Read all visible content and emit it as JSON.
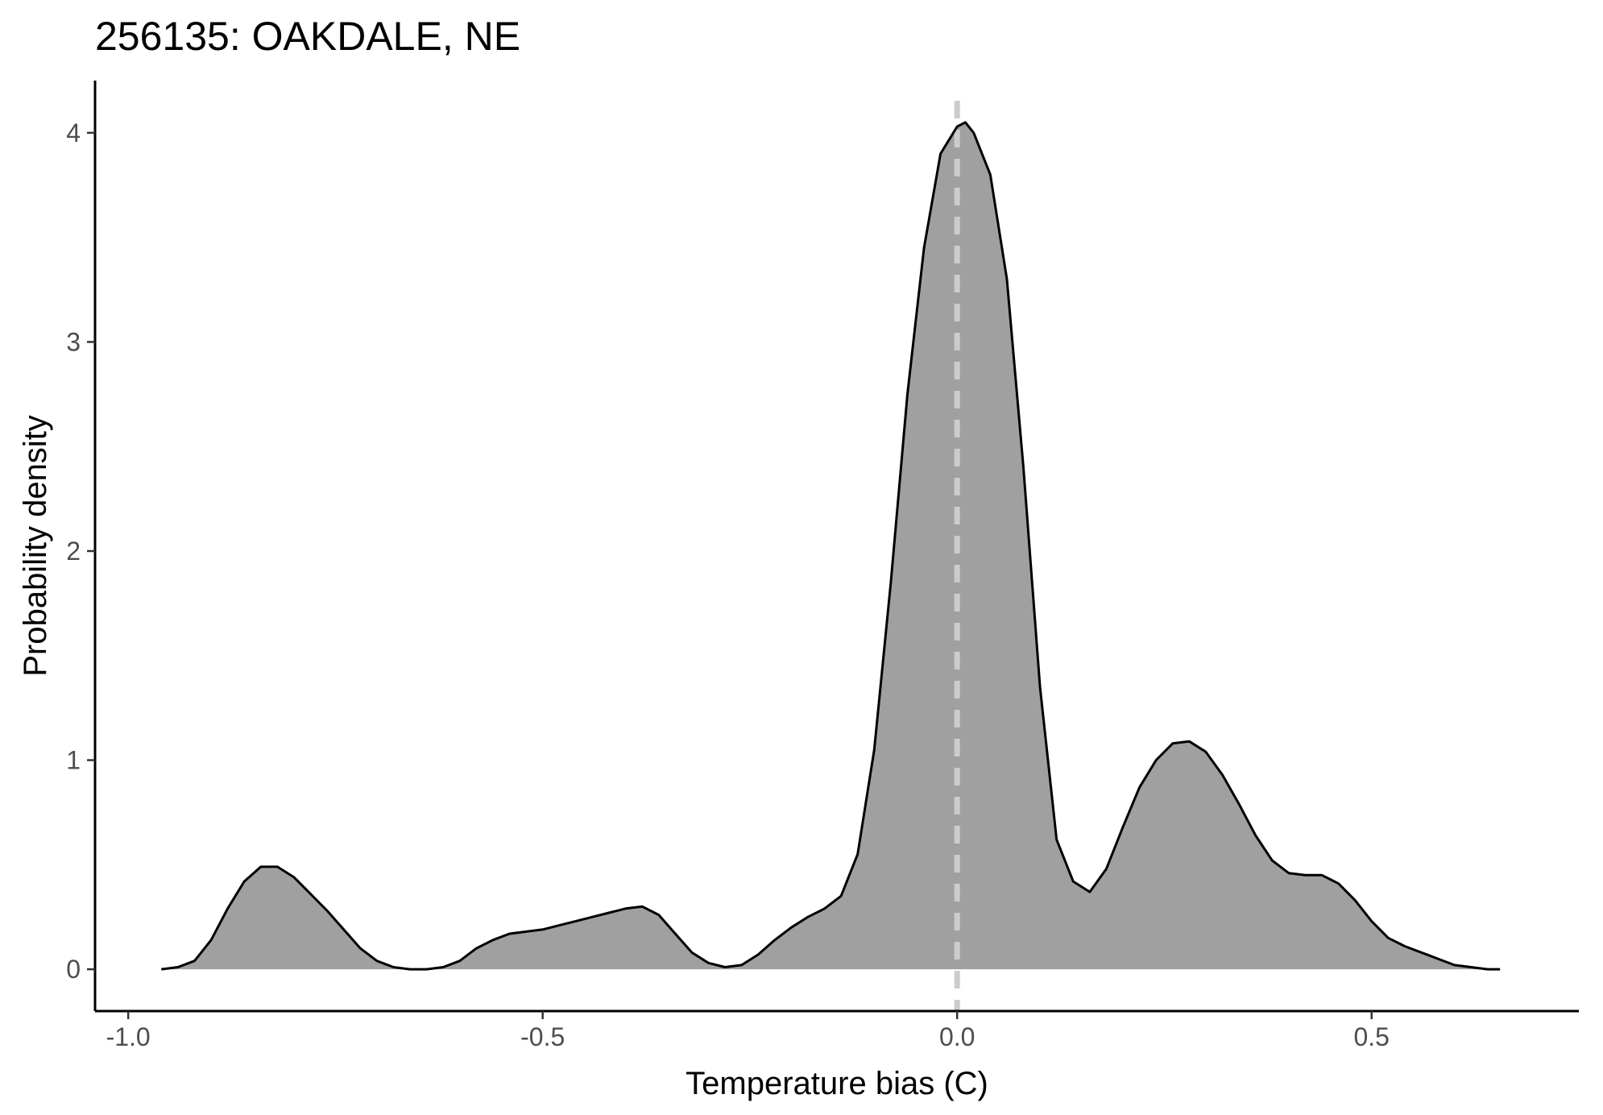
{
  "chart_data": {
    "type": "area",
    "title": "256135: OAKDALE, NE",
    "xlabel": "Temperature bias (C)",
    "ylabel": "Probability density",
    "xlim": [
      -1.04,
      0.75
    ],
    "ylim": [
      -0.2,
      4.25
    ],
    "x_ticks": [
      -1.0,
      -0.5,
      0.0,
      0.5
    ],
    "x_tick_labels": [
      "-1.0",
      "-0.5",
      "0.0",
      "0.5"
    ],
    "y_ticks": [
      0,
      1,
      2,
      3,
      4
    ],
    "y_tick_labels": [
      "0",
      "1",
      "2",
      "3",
      "4"
    ],
    "grid": false,
    "reference_line": {
      "x": 0.0,
      "style": "dashed",
      "color": "#cccccc"
    },
    "fill_color": "#a0a0a0",
    "line_color": "#000000",
    "series": [
      {
        "x": [
          -0.96,
          -0.94,
          -0.92,
          -0.9,
          -0.88,
          -0.86,
          -0.84,
          -0.82,
          -0.8,
          -0.78,
          -0.76,
          -0.74,
          -0.72,
          -0.7,
          -0.68,
          -0.66,
          -0.64,
          -0.62,
          -0.6,
          -0.58,
          -0.56,
          -0.54,
          -0.52,
          -0.5,
          -0.48,
          -0.46,
          -0.44,
          -0.42,
          -0.4,
          -0.38,
          -0.36,
          -0.34,
          -0.32,
          -0.3,
          -0.28,
          -0.26,
          -0.24,
          -0.22,
          -0.2,
          -0.18,
          -0.16,
          -0.14,
          -0.12,
          -0.1,
          -0.08,
          -0.06,
          -0.04,
          -0.02,
          0.0,
          0.01,
          0.02,
          0.04,
          0.06,
          0.08,
          0.1,
          0.12,
          0.14,
          0.16,
          0.18,
          0.2,
          0.22,
          0.24,
          0.26,
          0.28,
          0.3,
          0.32,
          0.34,
          0.36,
          0.38,
          0.4,
          0.42,
          0.44,
          0.46,
          0.48,
          0.5,
          0.52,
          0.54,
          0.56,
          0.58,
          0.6,
          0.62,
          0.64,
          0.655
        ],
        "y": [
          0.0,
          0.01,
          0.04,
          0.14,
          0.29,
          0.42,
          0.49,
          0.49,
          0.44,
          0.36,
          0.28,
          0.19,
          0.1,
          0.04,
          0.01,
          0.0,
          0.0,
          0.01,
          0.04,
          0.1,
          0.14,
          0.17,
          0.18,
          0.19,
          0.21,
          0.23,
          0.25,
          0.27,
          0.29,
          0.3,
          0.26,
          0.17,
          0.08,
          0.03,
          0.01,
          0.02,
          0.07,
          0.14,
          0.2,
          0.25,
          0.29,
          0.35,
          0.55,
          1.05,
          1.85,
          2.75,
          3.45,
          3.9,
          4.03,
          4.05,
          4.0,
          3.8,
          3.3,
          2.4,
          1.35,
          0.62,
          0.42,
          0.37,
          0.48,
          0.68,
          0.87,
          1.0,
          1.08,
          1.09,
          1.04,
          0.93,
          0.79,
          0.64,
          0.52,
          0.46,
          0.45,
          0.45,
          0.41,
          0.33,
          0.23,
          0.15,
          0.11,
          0.08,
          0.05,
          0.02,
          0.01,
          0.0,
          0.0
        ]
      }
    ]
  }
}
